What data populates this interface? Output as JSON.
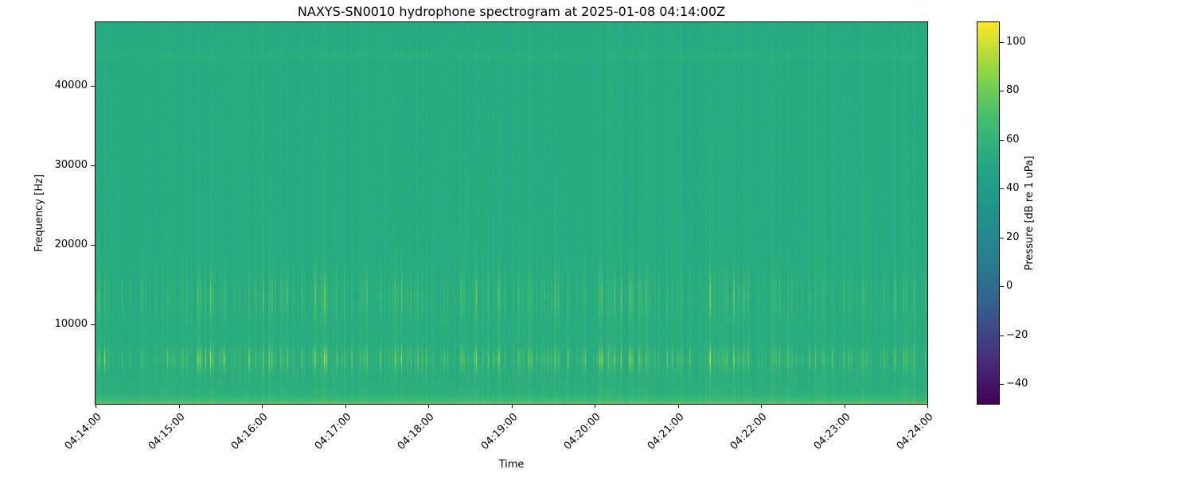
{
  "chart_data": {
    "type": "heatmap",
    "title": "NAXYS-SN0010 hydrophone spectrogram at 2025-01-08 04:14:00Z",
    "xlabel": "Time",
    "ylabel": "Frequency [Hz]",
    "x_tick_labels": [
      "04:14:00",
      "04:15:00",
      "04:16:00",
      "04:17:00",
      "04:18:00",
      "04:19:00",
      "04:20:00",
      "04:21:00",
      "04:22:00",
      "04:23:00",
      "04:24:00"
    ],
    "y_tick_values": [
      10000,
      20000,
      30000,
      40000
    ],
    "ylim": [
      0,
      48000
    ],
    "colormap": "viridis",
    "grid": false,
    "colorbar": {
      "label": "Pressure [dB re 1 uPa]",
      "tick_values": [
        100,
        80,
        60,
        40,
        20,
        0,
        -20,
        -40
      ],
      "vmin": -48,
      "vmax": 108
    },
    "content_summary": {
      "background_level_db": 52,
      "low_band": {
        "range_hz": [
          0,
          1500
        ],
        "level_db": 70
      },
      "transient_band_1": {
        "center_hz": 5600,
        "half_width_hz": 1500,
        "peak_db": 95
      },
      "transient_band_2": {
        "center_hz": 13500,
        "half_width_hz": 3000,
        "peak_db": 85
      },
      "faint_line_hz": 43800,
      "description": "Dense broadband transient clicks appear as thin vertical streaks across the whole record, brightest near 4-7 kHz and 11-16 kHz, over a uniform ~52 dB teal background with a bright yellow-green band below ~1.5 kHz"
    }
  }
}
